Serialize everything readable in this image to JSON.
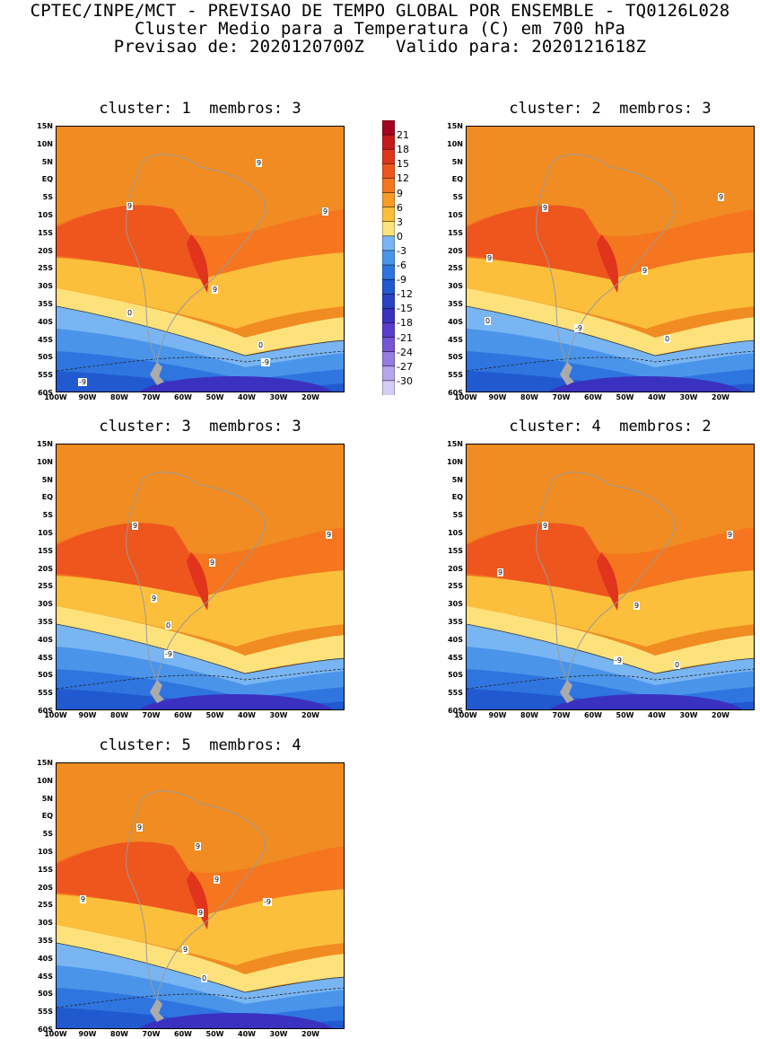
{
  "header": {
    "line1": "CPTEC/INPE/MCT - PREVISAO DE TEMPO GLOBAL POR ENSEMBLE - TQ0126L028",
    "line2": "Cluster Medio para a Temperatura (C) em 700 hPa",
    "line3": "Previsao de: 2020120700Z   Valido para: 2020121618Z"
  },
  "panels": [
    {
      "title": "cluster: 1  membros: 3",
      "contour_labels": [
        "9",
        "9",
        "9",
        "9",
        "0",
        "0",
        "-9",
        "-9"
      ]
    },
    {
      "title": "cluster: 2  membros: 3",
      "contour_labels": [
        "9",
        "9",
        "9",
        "9",
        "0",
        "0",
        "-9"
      ]
    },
    {
      "title": "cluster: 3  membros: 3",
      "contour_labels": [
        "9",
        "9",
        "9",
        "9",
        "0",
        "-9"
      ]
    },
    {
      "title": "cluster: 4  membros: 2",
      "contour_labels": [
        "9",
        "9",
        "9",
        "9",
        "0",
        "-9"
      ]
    },
    {
      "title": "cluster: 5  membros: 4",
      "contour_labels": [
        "9",
        "9",
        "9",
        "9",
        "9",
        "9",
        "0",
        "-9"
      ]
    }
  ],
  "lat_labels": [
    "15N",
    "10N",
    "5N",
    "EQ",
    "5S",
    "10S",
    "15S",
    "20S",
    "25S",
    "30S",
    "35S",
    "40S",
    "45S",
    "50S",
    "55S",
    "60S"
  ],
  "lon_labels": [
    "100W",
    "90W",
    "80W",
    "70W",
    "60W",
    "50W",
    "40W",
    "30W",
    "20W"
  ],
  "colorbar": {
    "labels": [
      "21",
      "18",
      "15",
      "12",
      "9",
      "6",
      "3",
      "0",
      "-3",
      "-6",
      "-9",
      "-12",
      "-15",
      "-18",
      "-21",
      "-24",
      "-27",
      "-30"
    ],
    "colors": [
      "#a5001e",
      "#c41a1a",
      "#e0341c",
      "#ee561e",
      "#f5761f",
      "#f99b24",
      "#fbbf3c",
      "#fde27c",
      "#79b5f2",
      "#4a94ea",
      "#2f75e0",
      "#2059d0",
      "#2843c4",
      "#3b31c0",
      "#5a3ccc",
      "#7654d6",
      "#957be2",
      "#b7a6ec",
      "#d6cdf4"
    ]
  }
}
